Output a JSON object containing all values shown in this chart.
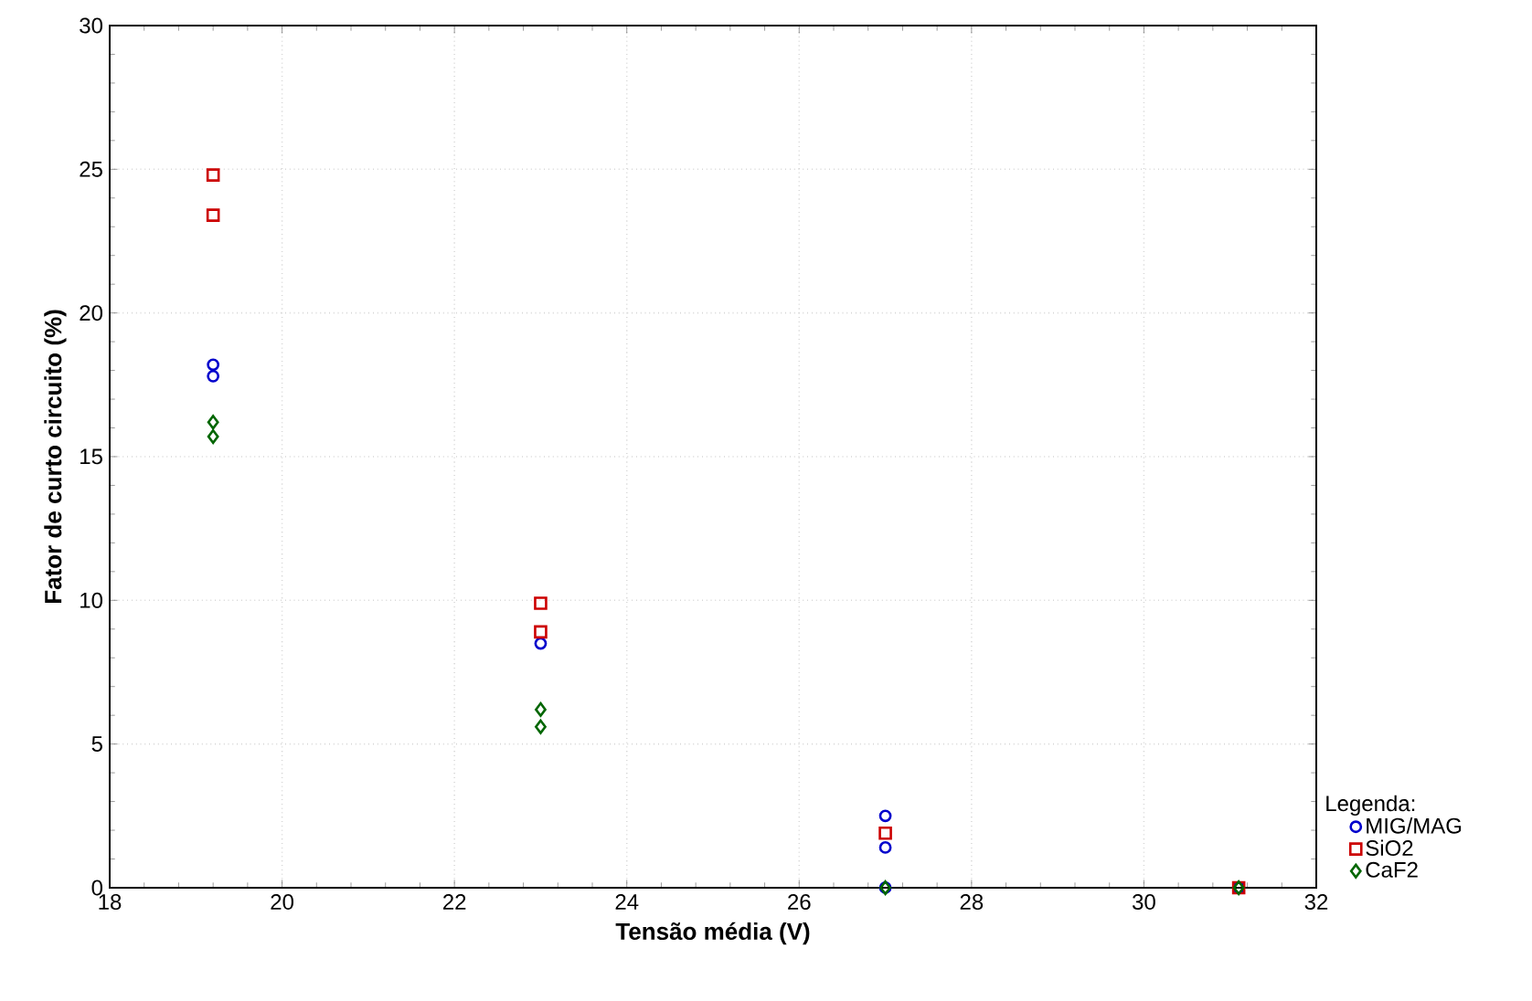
{
  "chart_data": {
    "type": "scatter",
    "xlabel": "Tensão média (V)",
    "ylabel": "Fator de curto circuito (%)",
    "legend_title": "Legenda:",
    "xlim": [
      18,
      32
    ],
    "xticks": [
      18,
      20,
      22,
      24,
      26,
      28,
      30,
      32
    ],
    "ylim": [
      0,
      30
    ],
    "yticks": [
      0,
      5,
      10,
      15,
      20,
      25,
      30
    ],
    "grid": true,
    "legend": "bottom right",
    "series": [
      {
        "name": "MIG/MAG",
        "color": "#0000cc",
        "marker": "circle",
        "x": [
          19.2,
          19.2,
          23.0,
          27.0,
          27.0,
          27.0,
          31.1
        ],
        "values": [
          17.8,
          18.2,
          8.5,
          2.5,
          1.4,
          0,
          0
        ]
      },
      {
        "name": "SiO2",
        "color": "#cc0000",
        "marker": "square",
        "x": [
          19.2,
          19.2,
          23.0,
          23.0,
          27.0,
          31.1
        ],
        "values": [
          24.8,
          23.4,
          9.9,
          8.9,
          1.9,
          0
        ]
      },
      {
        "name": "CaF2",
        "color": "#006600",
        "marker": "diamond",
        "x": [
          19.2,
          19.2,
          23.0,
          23.0,
          27.0,
          31.1
        ],
        "values": [
          16.2,
          15.7,
          6.2,
          5.6,
          0,
          0
        ]
      }
    ]
  }
}
